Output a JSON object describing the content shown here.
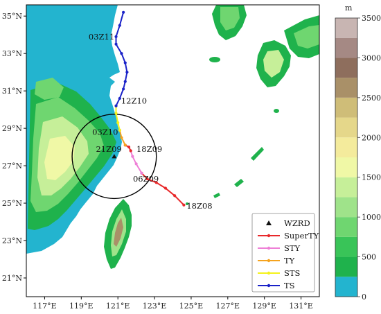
{
  "map": {
    "lon_range": [
      116,
      132
    ],
    "lat_range": [
      20,
      35.6
    ],
    "x_ticks": [
      {
        "value": 117,
        "label": "117°E"
      },
      {
        "value": 119,
        "label": "119°E"
      },
      {
        "value": 121,
        "label": "121°E"
      },
      {
        "value": 123,
        "label": "123°E"
      },
      {
        "value": 125,
        "label": "125°E"
      },
      {
        "value": 127,
        "label": "127°E"
      },
      {
        "value": 129,
        "label": "129°E"
      },
      {
        "value": 131,
        "label": "131°E"
      }
    ],
    "y_ticks": [
      {
        "value": 21,
        "label": "21°N"
      },
      {
        "value": 23,
        "label": "23°N"
      },
      {
        "value": 25,
        "label": "25°N"
      },
      {
        "value": 27,
        "label": "27°N"
      },
      {
        "value": 29,
        "label": "29°N"
      },
      {
        "value": 31,
        "label": "31°N"
      },
      {
        "value": 33,
        "label": "33°N"
      },
      {
        "value": 35,
        "label": "35°N"
      }
    ],
    "sea_color": "#23b4cf",
    "radar": {
      "name": "WZRD",
      "lon": 120.8,
      "lat": 27.5,
      "circle_radius_deg": 2.3
    }
  },
  "track": {
    "segments": [
      {
        "category": "SuperTY",
        "color": "#e8292b",
        "points": [
          [
            124.6,
            24.9
          ],
          [
            124.1,
            25.4
          ],
          [
            123.6,
            25.8
          ],
          [
            123.1,
            26.1
          ],
          [
            122.6,
            26.3
          ],
          [
            122.3,
            26.6
          ]
        ]
      },
      {
        "category": "STY",
        "color": "#ee7fd6",
        "points": [
          [
            122.3,
            26.6
          ],
          [
            122.0,
            27.1
          ],
          [
            121.8,
            27.5
          ],
          [
            121.7,
            27.8
          ]
        ]
      },
      {
        "category": "SuperTY",
        "color": "#e8292b",
        "points": [
          [
            121.7,
            27.8
          ],
          [
            121.6,
            28.0
          ],
          [
            121.4,
            28.1
          ]
        ]
      },
      {
        "category": "TY",
        "color": "#f5a31e",
        "points": [
          [
            121.4,
            28.1
          ],
          [
            121.2,
            28.5
          ],
          [
            121.1,
            28.9
          ]
        ]
      },
      {
        "category": "STS",
        "color": "#f4f21a",
        "points": [
          [
            121.1,
            28.9
          ],
          [
            121.0,
            29.3
          ],
          [
            120.9,
            29.8
          ],
          [
            120.9,
            30.2
          ]
        ]
      },
      {
        "category": "TS",
        "color": "#1a22c8",
        "points": [
          [
            120.9,
            30.2
          ],
          [
            121.1,
            30.6
          ],
          [
            121.3,
            31.1
          ],
          [
            121.4,
            31.5
          ],
          [
            121.5,
            32.0
          ],
          [
            121.4,
            32.5
          ],
          [
            121.2,
            33.0
          ],
          [
            120.9,
            33.5
          ],
          [
            120.9,
            33.9
          ],
          [
            121.1,
            34.5
          ],
          [
            121.3,
            35.2
          ]
        ]
      }
    ],
    "time_labels": [
      {
        "text": "18Z08",
        "lon": 124.6,
        "lat": 24.9
      },
      {
        "text": "06Z09",
        "lon": 121.9,
        "lat": 26.3
      },
      {
        "text": "18Z09",
        "lon": 121.9,
        "lat": 27.9
      },
      {
        "text": "21Z09",
        "lon": 119.8,
        "lat": 27.9
      },
      {
        "text": "03Z10",
        "lon": 119.6,
        "lat": 28.8
      },
      {
        "text": "12Z10",
        "lon": 121.1,
        "lat": 30.4
      },
      {
        "text": "03Z11",
        "lon": 119.4,
        "lat": 33.9
      }
    ]
  },
  "legend": {
    "position": "bottom-right",
    "entries": [
      {
        "label": "WZRD",
        "marker": "triangle",
        "color": "#111111"
      },
      {
        "label": "SuperTY",
        "marker": "line",
        "color": "#e8292b"
      },
      {
        "label": "STY",
        "marker": "line",
        "color": "#ee7fd6"
      },
      {
        "label": "TY",
        "marker": "line",
        "color": "#f5a31e"
      },
      {
        "label": "STS",
        "marker": "line",
        "color": "#f4f21a"
      },
      {
        "label": "TS",
        "marker": "line",
        "color": "#1a22c8"
      }
    ]
  },
  "colorbar": {
    "unit": "m",
    "min": 0,
    "max": 3500,
    "step": 250,
    "tick_values": [
      0,
      500,
      1000,
      1500,
      2000,
      2500,
      3000,
      3500
    ],
    "tick_labels": [
      "0",
      "500",
      "1000",
      "1500",
      "2000",
      "2500",
      "3000",
      "3500"
    ],
    "colors": [
      "#23b4cf",
      "#1fb24c",
      "#39c458",
      "#6fd670",
      "#9fe38a",
      "#c6ef99",
      "#f0f8a6",
      "#f4eb9c",
      "#e5d78a",
      "#cfbd78",
      "#a99068",
      "#8e6e5d",
      "#a58984",
      "#c8b5b2",
      "#ece6e6"
    ]
  }
}
